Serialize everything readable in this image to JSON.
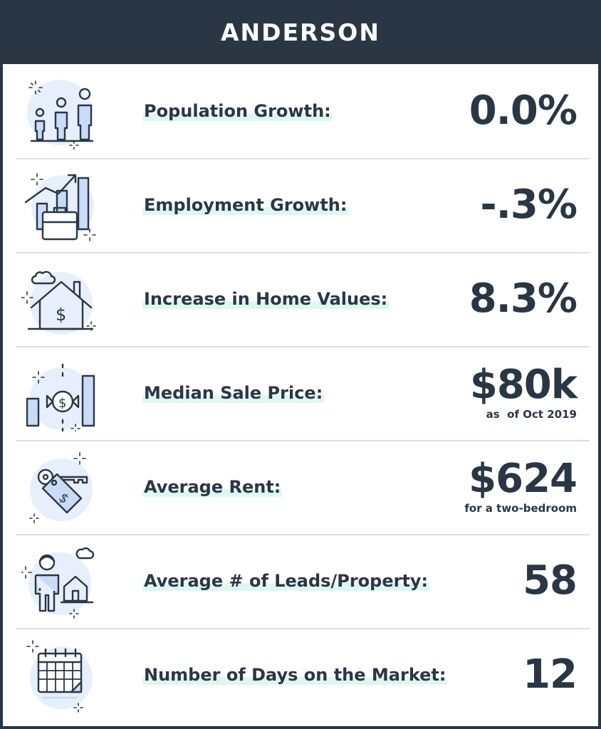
{
  "title": "ANDERSON",
  "rows": [
    {
      "icon": "population-icon",
      "label": "Population Growth:",
      "value": "0.0%",
      "sub": ""
    },
    {
      "icon": "employment-icon",
      "label": "Employment Growth:",
      "value": "-.3%",
      "sub": ""
    },
    {
      "icon": "home-value-icon",
      "label": "Increase in Home Values:",
      "value": "8.3%",
      "sub": ""
    },
    {
      "icon": "sale-price-icon",
      "label": "Median Sale Price:",
      "value": "$80k",
      "sub": "as  of Oct 2019"
    },
    {
      "icon": "rent-key-icon",
      "label": "Average Rent:",
      "value": "$624",
      "sub": "for a two-bedroom"
    },
    {
      "icon": "leads-icon",
      "label": "Average # of Leads/Property:",
      "value": "58",
      "sub": ""
    },
    {
      "icon": "calendar-icon",
      "label": "Number of Days on the Market:",
      "value": "12",
      "sub": ""
    }
  ],
  "colors": {
    "header": "#2b3645",
    "text": "#2b3645",
    "highlight": "#dcf8f0",
    "divider": "#d3e1f2",
    "icon_fill": "#c9dbf7"
  }
}
